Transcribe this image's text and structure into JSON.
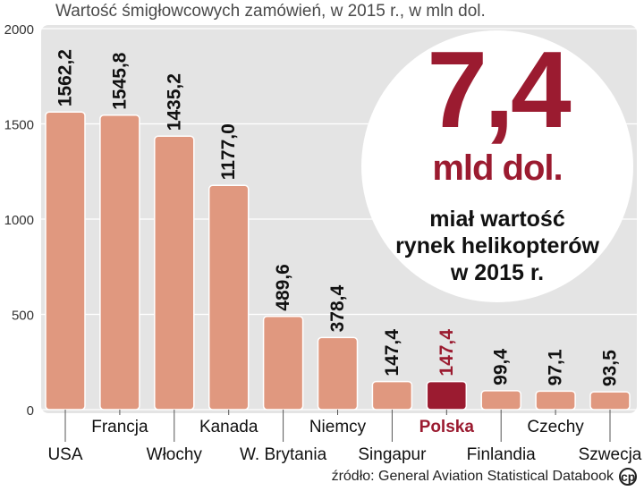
{
  "title": "Wartość śmigłowcowych zamówień, w 2015 r., w mln dol.",
  "callout": {
    "value": "7,4",
    "unit": "mld dol.",
    "lines": [
      "miał wartość",
      "rynek helikopterów",
      "w 2015 r."
    ]
  },
  "source": "źródło: General Aviation Statistical Databook",
  "colors": {
    "bar": "#e0987f",
    "highlight": "#9b1b30",
    "panel": "#e4e4e4",
    "text": "#111111"
  },
  "chart_data": {
    "type": "bar",
    "title": "Wartość śmigłowcowych zamówień, w 2015 r., w mln dol.",
    "categories": [
      "USA",
      "Francja",
      "Włochy",
      "Kanada",
      "W. Brytania",
      "Niemcy",
      "Singapur",
      "Polska",
      "Finlandia",
      "Czechy",
      "Szwecja"
    ],
    "values": [
      1562.2,
      1545.8,
      1435.2,
      1177.0,
      489.6,
      378.4,
      147.4,
      147.4,
      99.4,
      97.1,
      93.5
    ],
    "value_labels": [
      "1562,2",
      "1545,8",
      "1435,2",
      "1177,0",
      "489,6",
      "378,4",
      "147,4",
      "147,4",
      "99,4",
      "97,1",
      "93,5"
    ],
    "highlight": "Polska",
    "yticks": [
      "0",
      "500",
      "1000",
      "1500",
      "2000"
    ],
    "ylim": [
      0,
      2000
    ],
    "xlabel": "",
    "ylabel": ""
  }
}
